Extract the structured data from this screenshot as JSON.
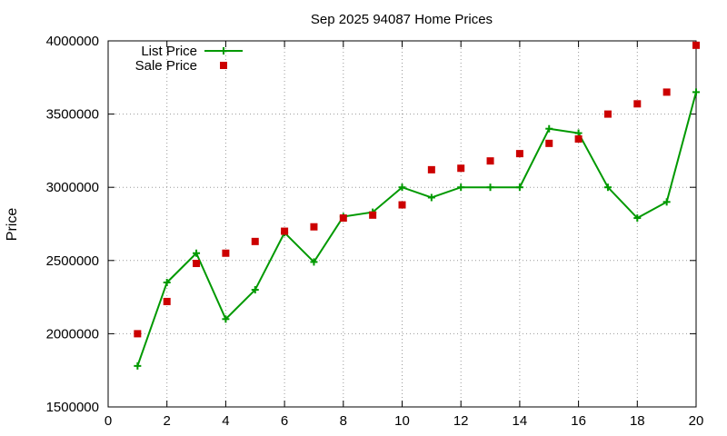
{
  "chart_data": {
    "type": "line",
    "title": "Sep 2025 94087 Home Prices",
    "xlabel": "",
    "ylabel": "Price",
    "xlim": [
      0,
      20
    ],
    "ylim": [
      1500000,
      4000000
    ],
    "xticks": [
      0,
      2,
      4,
      6,
      8,
      10,
      12,
      14,
      16,
      18,
      20
    ],
    "yticks": [
      1500000,
      2000000,
      2500000,
      3000000,
      3500000,
      4000000
    ],
    "grid": true,
    "legend_position": "top-left",
    "series": [
      {
        "name": "List Price",
        "style": "line-plus",
        "color": "#009900",
        "x": [
          1,
          2,
          3,
          4,
          5,
          6,
          7,
          8,
          9,
          10,
          11,
          12,
          13,
          14,
          15,
          16,
          17,
          18,
          19,
          20
        ],
        "y": [
          1780000,
          2350000,
          2550000,
          2100000,
          2300000,
          2690000,
          2490000,
          2800000,
          2830000,
          3000000,
          2930000,
          3000000,
          3000000,
          3000000,
          3400000,
          3370000,
          3000000,
          2790000,
          2900000,
          3650000
        ]
      },
      {
        "name": "Sale Price",
        "style": "square-markers",
        "color": "#cc0000",
        "x": [
          1,
          2,
          3,
          4,
          5,
          6,
          7,
          8,
          9,
          10,
          11,
          12,
          13,
          14,
          15,
          16,
          17,
          18,
          19,
          20
        ],
        "y": [
          2000000,
          2220000,
          2480000,
          2550000,
          2630000,
          2700000,
          2730000,
          2790000,
          2810000,
          2880000,
          3120000,
          3130000,
          3180000,
          3230000,
          3300000,
          3330000,
          3500000,
          3570000,
          3650000,
          3970000
        ]
      }
    ]
  }
}
